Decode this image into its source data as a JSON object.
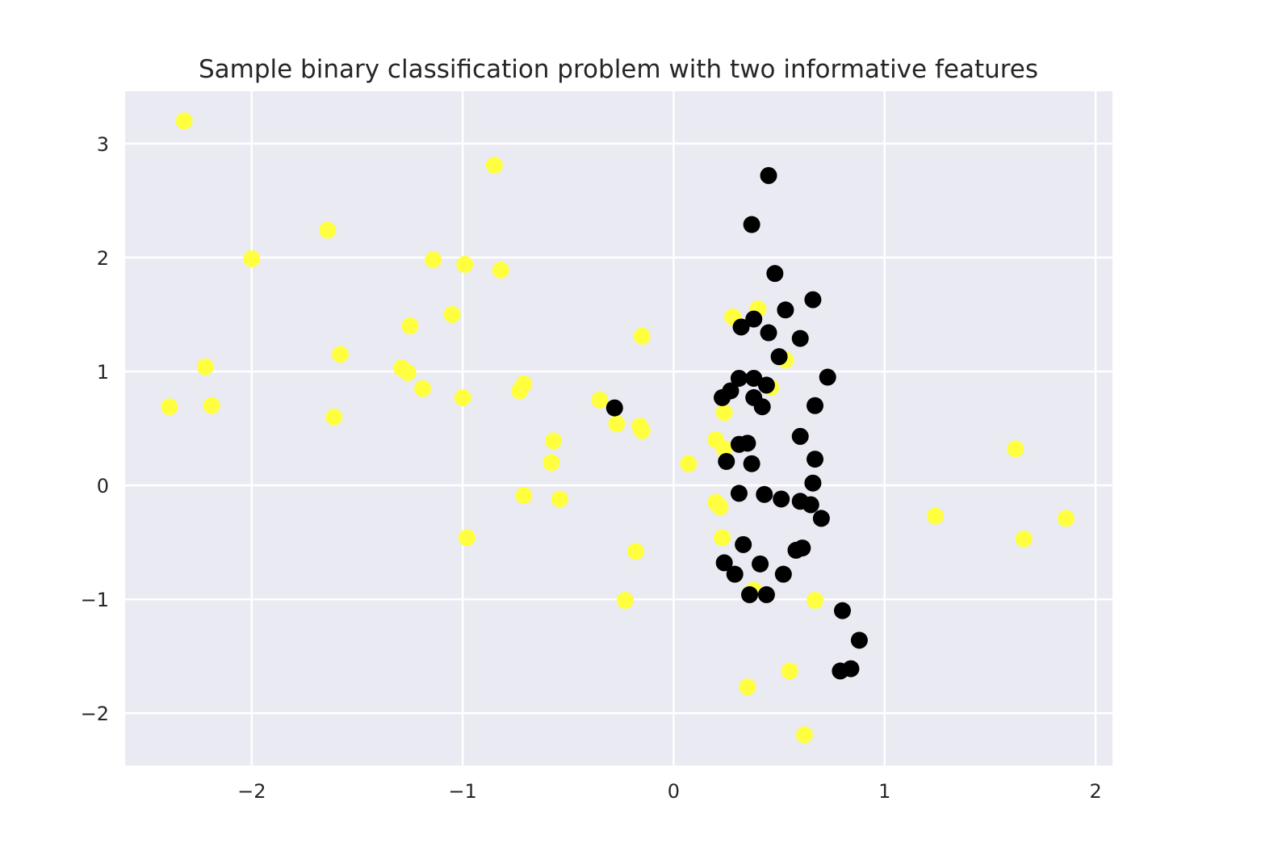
{
  "chart_data": {
    "type": "scatter",
    "title": "Sample binary classification problem with two informative features",
    "xlabel": "",
    "ylabel": "",
    "xlim": [
      -2.6,
      2.08
    ],
    "ylim": [
      -2.46,
      3.46
    ],
    "xticks": [
      -2,
      -1,
      0,
      1,
      2
    ],
    "yticks": [
      -2,
      -1,
      0,
      1,
      2,
      3
    ],
    "xtick_labels": [
      "−2",
      "−1",
      "0",
      "1",
      "2"
    ],
    "ytick_labels": [
      "−2",
      "−1",
      "0",
      "1",
      "2",
      "3"
    ],
    "grid": true,
    "background_color": "#eaeaf2",
    "grid_color": "#ffffff",
    "series": [
      {
        "color": "#ffff40",
        "points": [
          [
            -2.32,
            3.2
          ],
          [
            -0.85,
            2.81
          ],
          [
            -1.64,
            2.24
          ],
          [
            -2.0,
            1.99
          ],
          [
            -1.14,
            1.98
          ],
          [
            -0.99,
            1.94
          ],
          [
            -0.82,
            1.89
          ],
          [
            -1.05,
            1.5
          ],
          [
            -1.25,
            1.4
          ],
          [
            -0.15,
            1.31
          ],
          [
            -1.58,
            1.15
          ],
          [
            -2.22,
            1.04
          ],
          [
            -1.29,
            1.03
          ],
          [
            -1.26,
            0.99
          ],
          [
            -0.71,
            0.89
          ],
          [
            -0.73,
            0.83
          ],
          [
            -1.19,
            0.85
          ],
          [
            -1.0,
            0.77
          ],
          [
            -0.35,
            0.75
          ],
          [
            -2.39,
            0.69
          ],
          [
            -2.19,
            0.7
          ],
          [
            -1.61,
            0.6
          ],
          [
            -0.27,
            0.54
          ],
          [
            -0.16,
            0.52
          ],
          [
            -0.15,
            0.48
          ],
          [
            -0.57,
            0.39
          ],
          [
            -0.58,
            0.2
          ],
          [
            -0.71,
            -0.09
          ],
          [
            -0.54,
            -0.12
          ],
          [
            -0.98,
            -0.46
          ],
          [
            -0.18,
            -0.58
          ],
          [
            -0.23,
            -1.01
          ],
          [
            0.07,
            0.19
          ],
          [
            0.2,
            0.4
          ],
          [
            0.24,
            0.32
          ],
          [
            0.24,
            0.64
          ],
          [
            0.2,
            -0.15
          ],
          [
            0.22,
            -0.19
          ],
          [
            0.23,
            -0.46
          ],
          [
            0.28,
            1.48
          ],
          [
            0.4,
            1.55
          ],
          [
            0.53,
            1.1
          ],
          [
            0.46,
            0.86
          ],
          [
            0.38,
            -0.92
          ],
          [
            0.35,
            -1.77
          ],
          [
            0.55,
            -1.63
          ],
          [
            0.62,
            -2.19
          ],
          [
            0.67,
            -1.01
          ],
          [
            1.24,
            -0.27
          ],
          [
            1.62,
            0.32
          ],
          [
            1.66,
            -0.47
          ],
          [
            1.86,
            -0.29
          ]
        ]
      },
      {
        "color": "#000000",
        "points": [
          [
            0.45,
            2.72
          ],
          [
            0.37,
            2.29
          ],
          [
            0.48,
            1.86
          ],
          [
            0.66,
            1.63
          ],
          [
            0.53,
            1.54
          ],
          [
            0.38,
            1.46
          ],
          [
            0.32,
            1.39
          ],
          [
            0.45,
            1.34
          ],
          [
            0.6,
            1.29
          ],
          [
            0.5,
            1.13
          ],
          [
            0.31,
            0.94
          ],
          [
            0.38,
            0.94
          ],
          [
            0.73,
            0.95
          ],
          [
            0.44,
            0.88
          ],
          [
            0.27,
            0.83
          ],
          [
            0.23,
            0.77
          ],
          [
            0.38,
            0.77
          ],
          [
            0.42,
            0.69
          ],
          [
            0.67,
            0.7
          ],
          [
            -0.28,
            0.68
          ],
          [
            0.6,
            0.43
          ],
          [
            0.31,
            0.36
          ],
          [
            0.35,
            0.37
          ],
          [
            0.67,
            0.23
          ],
          [
            0.25,
            0.21
          ],
          [
            0.37,
            0.19
          ],
          [
            0.66,
            0.02
          ],
          [
            0.31,
            -0.07
          ],
          [
            0.43,
            -0.08
          ],
          [
            0.51,
            -0.12
          ],
          [
            0.6,
            -0.14
          ],
          [
            0.65,
            -0.17
          ],
          [
            0.7,
            -0.29
          ],
          [
            0.33,
            -0.52
          ],
          [
            0.61,
            -0.55
          ],
          [
            0.58,
            -0.57
          ],
          [
            0.24,
            -0.68
          ],
          [
            0.41,
            -0.69
          ],
          [
            0.29,
            -0.78
          ],
          [
            0.52,
            -0.78
          ],
          [
            0.36,
            -0.96
          ],
          [
            0.44,
            -0.96
          ],
          [
            0.8,
            -1.1
          ],
          [
            0.88,
            -1.36
          ],
          [
            0.84,
            -1.61
          ],
          [
            0.79,
            -1.63
          ]
        ]
      }
    ]
  }
}
